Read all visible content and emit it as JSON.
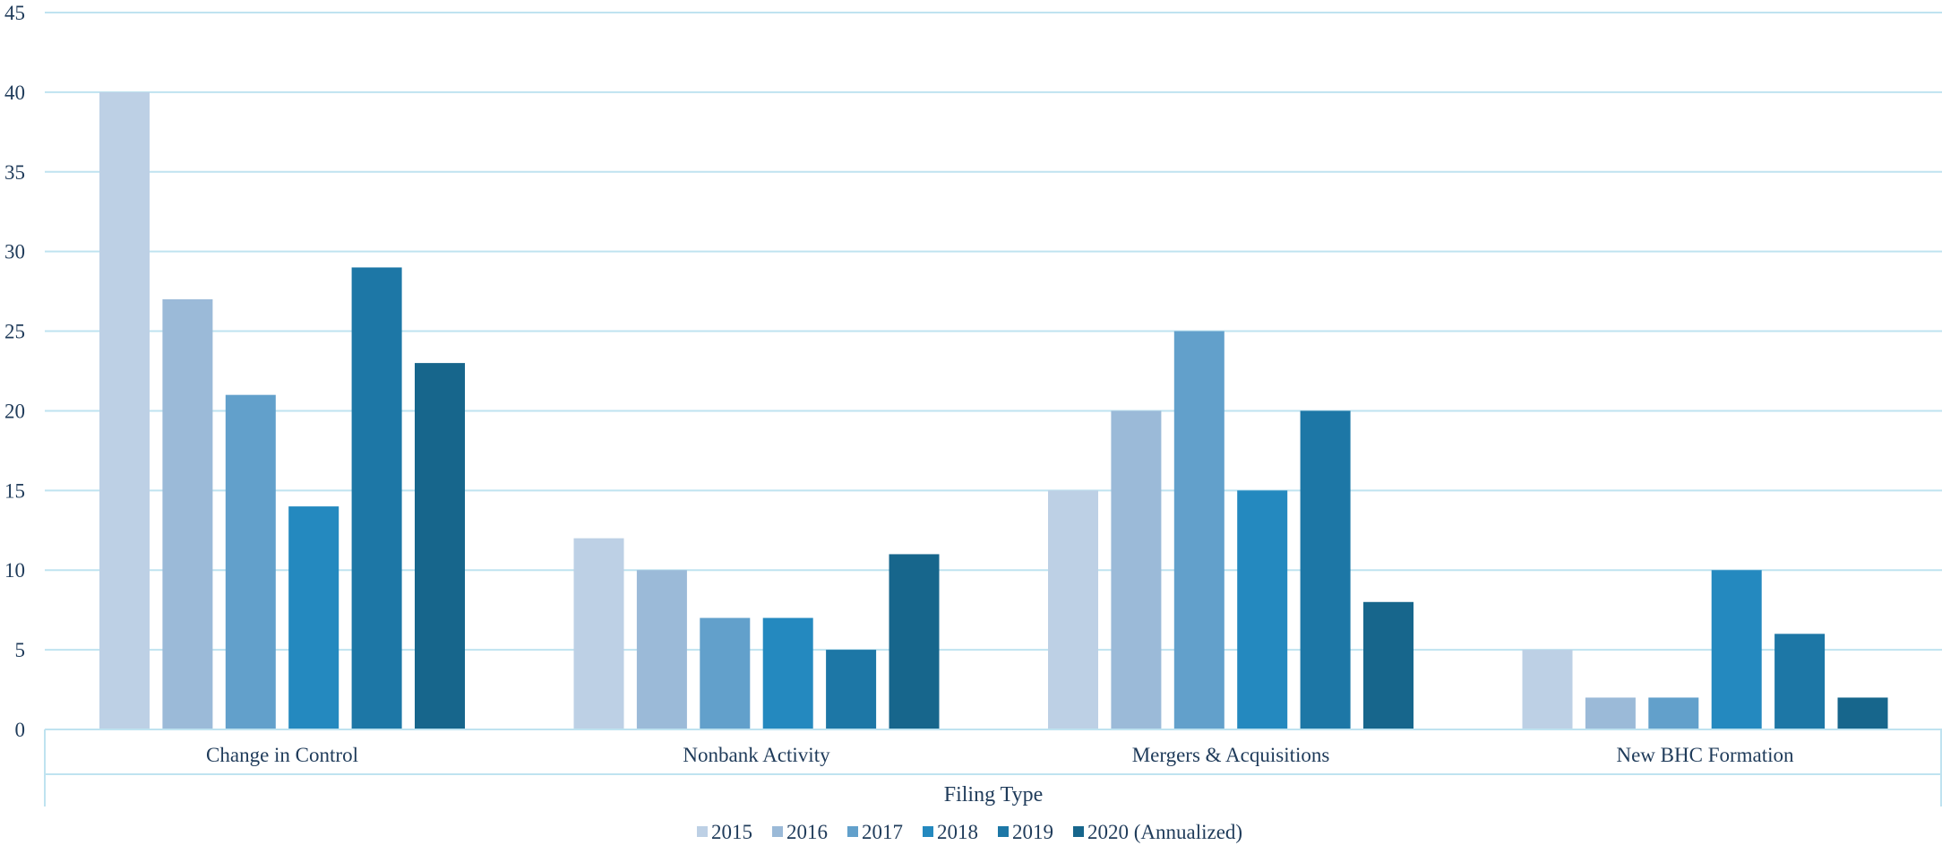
{
  "chart_data": {
    "type": "bar",
    "title": "",
    "xlabel": "Filing Type",
    "ylabel": "",
    "ylim": [
      0,
      45
    ],
    "ytick_step": 5,
    "grid": true,
    "legend_position": "bottom",
    "categories": [
      "Change in Control",
      "Nonbank Activity",
      "Mergers & Acquisitions",
      "New BHC Formation"
    ],
    "series": [
      {
        "name": "2015",
        "color": "#bdd0e5",
        "values": [
          40,
          12,
          15,
          5
        ]
      },
      {
        "name": "2016",
        "color": "#9bbad8",
        "values": [
          27,
          10,
          20,
          2
        ]
      },
      {
        "name": "2017",
        "color": "#62a0cb",
        "values": [
          21,
          7,
          25,
          2
        ]
      },
      {
        "name": "2018",
        "color": "#2489bf",
        "values": [
          14,
          7,
          15,
          10
        ]
      },
      {
        "name": "2019",
        "color": "#1d77a6",
        "values": [
          29,
          5,
          20,
          6
        ]
      },
      {
        "name": "2020 (Annualized)",
        "color": "#17668c",
        "values": [
          23,
          11,
          8,
          2
        ]
      }
    ],
    "colors": {
      "grid": "#bfe3f0",
      "text": "#1f3b5a"
    }
  }
}
